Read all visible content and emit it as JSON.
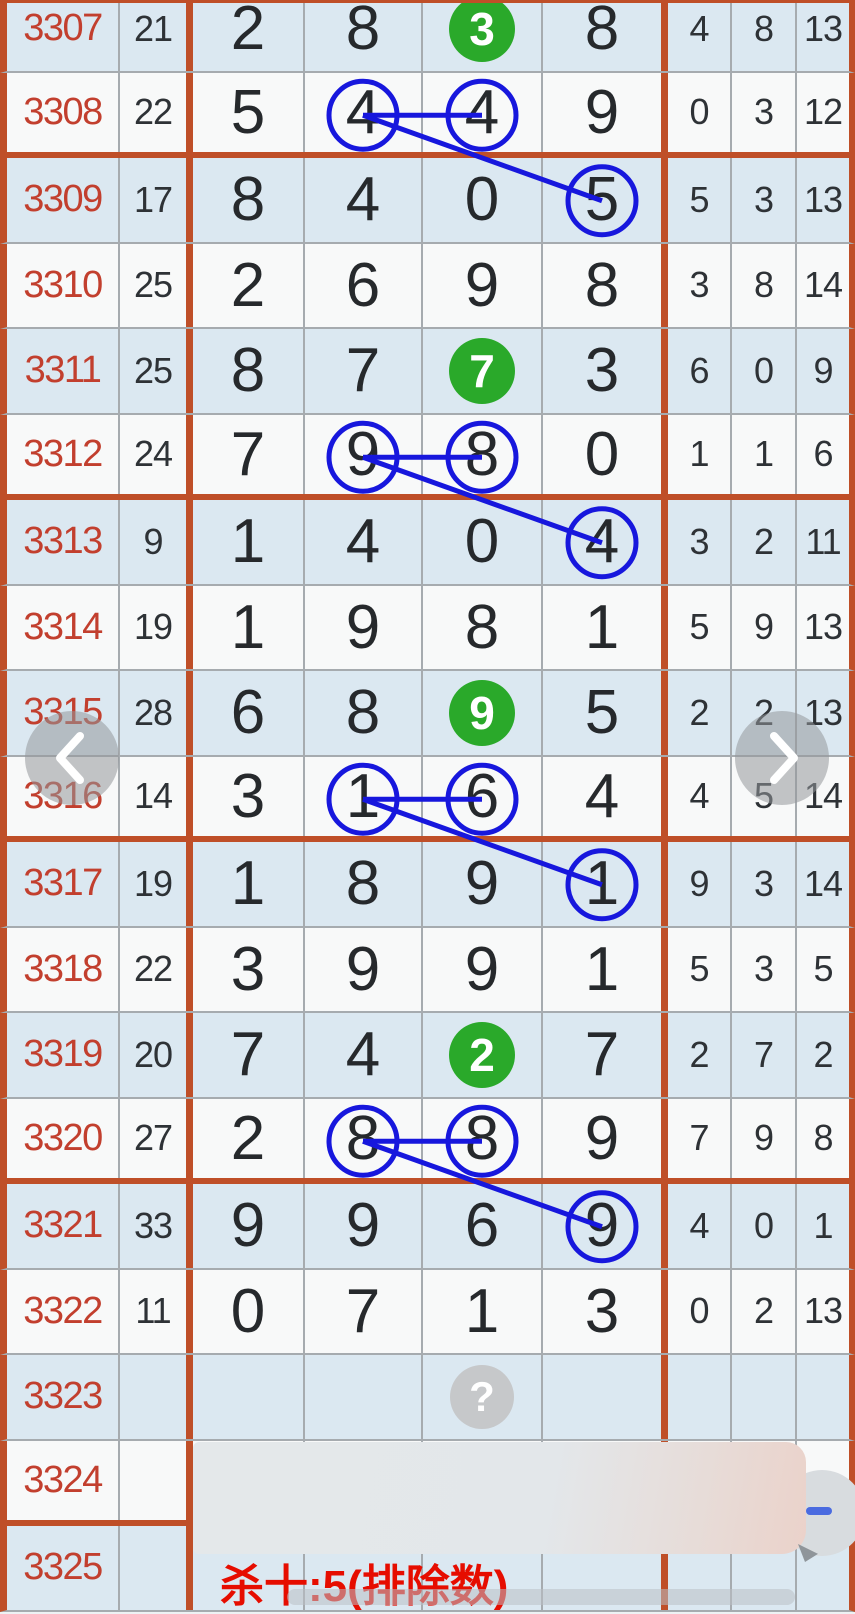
{
  "table": {
    "rows": [
      {
        "period": "3307",
        "count": "21",
        "digits": [
          "2",
          "8",
          "3",
          "8"
        ],
        "tail": [
          "4",
          "8",
          "13"
        ],
        "group_end": false
      },
      {
        "period": "3308",
        "count": "22",
        "digits": [
          "5",
          "4",
          "4",
          "9"
        ],
        "tail": [
          "0",
          "3",
          "12"
        ],
        "group_end": true
      },
      {
        "period": "3309",
        "count": "17",
        "digits": [
          "8",
          "4",
          "0",
          "5"
        ],
        "tail": [
          "5",
          "3",
          "13"
        ],
        "group_end": false
      },
      {
        "period": "3310",
        "count": "25",
        "digits": [
          "2",
          "6",
          "9",
          "8"
        ],
        "tail": [
          "3",
          "8",
          "14"
        ],
        "group_end": false
      },
      {
        "period": "3311",
        "count": "25",
        "digits": [
          "8",
          "7",
          "7",
          "3"
        ],
        "tail": [
          "6",
          "0",
          "9"
        ],
        "group_end": false
      },
      {
        "period": "3312",
        "count": "24",
        "digits": [
          "7",
          "9",
          "8",
          "0"
        ],
        "tail": [
          "1",
          "1",
          "6"
        ],
        "group_end": true
      },
      {
        "period": "3313",
        "count": "9",
        "digits": [
          "1",
          "4",
          "0",
          "4"
        ],
        "tail": [
          "3",
          "2",
          "11"
        ],
        "group_end": false
      },
      {
        "period": "3314",
        "count": "19",
        "digits": [
          "1",
          "9",
          "8",
          "1"
        ],
        "tail": [
          "5",
          "9",
          "13"
        ],
        "group_end": false
      },
      {
        "period": "3315",
        "count": "28",
        "digits": [
          "6",
          "8",
          "9",
          "5"
        ],
        "tail": [
          "2",
          "2",
          "13"
        ],
        "group_end": false
      },
      {
        "period": "3316",
        "count": "14",
        "digits": [
          "3",
          "1",
          "6",
          "4"
        ],
        "tail": [
          "4",
          "5",
          "14"
        ],
        "group_end": true
      },
      {
        "period": "3317",
        "count": "19",
        "digits": [
          "1",
          "8",
          "9",
          "1"
        ],
        "tail": [
          "9",
          "3",
          "14"
        ],
        "group_end": false
      },
      {
        "period": "3318",
        "count": "22",
        "digits": [
          "3",
          "9",
          "9",
          "1"
        ],
        "tail": [
          "5",
          "3",
          "5"
        ],
        "group_end": false
      },
      {
        "period": "3319",
        "count": "20",
        "digits": [
          "7",
          "4",
          "2",
          "7"
        ],
        "tail": [
          "2",
          "7",
          "2"
        ],
        "group_end": false
      },
      {
        "period": "3320",
        "count": "27",
        "digits": [
          "2",
          "8",
          "8",
          "9"
        ],
        "tail": [
          "7",
          "9",
          "8"
        ],
        "group_end": true
      },
      {
        "period": "3321",
        "count": "33",
        "digits": [
          "9",
          "9",
          "6",
          "9"
        ],
        "tail": [
          "4",
          "0",
          "1"
        ],
        "group_end": false
      },
      {
        "period": "3322",
        "count": "11",
        "digits": [
          "0",
          "7",
          "1",
          "3"
        ],
        "tail": [
          "0",
          "2",
          "13"
        ],
        "group_end": false
      },
      {
        "period": "3323",
        "count": "",
        "digits": [
          "",
          "",
          "?",
          ""
        ],
        "tail": [
          "",
          "",
          ""
        ],
        "group_end": false
      },
      {
        "period": "3324",
        "count": "",
        "digits": [
          "",
          "",
          "",
          ""
        ],
        "tail": [
          "",
          "",
          ""
        ],
        "group_end": true
      },
      {
        "period": "3325",
        "count": "",
        "digits": [
          "",
          "",
          "",
          ""
        ],
        "tail": [
          "",
          "",
          ""
        ],
        "group_end": false
      }
    ]
  },
  "annotations": {
    "green_circle_rows": [
      "3307",
      "3311",
      "3315",
      "3319"
    ],
    "question_row": "3323",
    "question_mark": "?",
    "link_groups": [
      {
        "top_row": "3308",
        "bottom_row": "3309"
      },
      {
        "top_row": "3312",
        "bottom_row": "3313"
      },
      {
        "top_row": "3316",
        "bottom_row": "3317"
      },
      {
        "top_row": "3320",
        "bottom_row": "3321"
      }
    ]
  },
  "nav": {
    "left_icon": "chevron-left",
    "right_icon": "chevron-right"
  },
  "footer": {
    "kill_text": "杀十:5(排除数)"
  },
  "colors": {
    "group_border": "#bf4f28",
    "row_blue": "#dbe8f1",
    "row_white": "#f8f9f9",
    "annotation_blue": "#1717dd",
    "green_badge": "#2aa92a",
    "period_red": "#c23f2e",
    "kill_red": "#e60d00"
  }
}
